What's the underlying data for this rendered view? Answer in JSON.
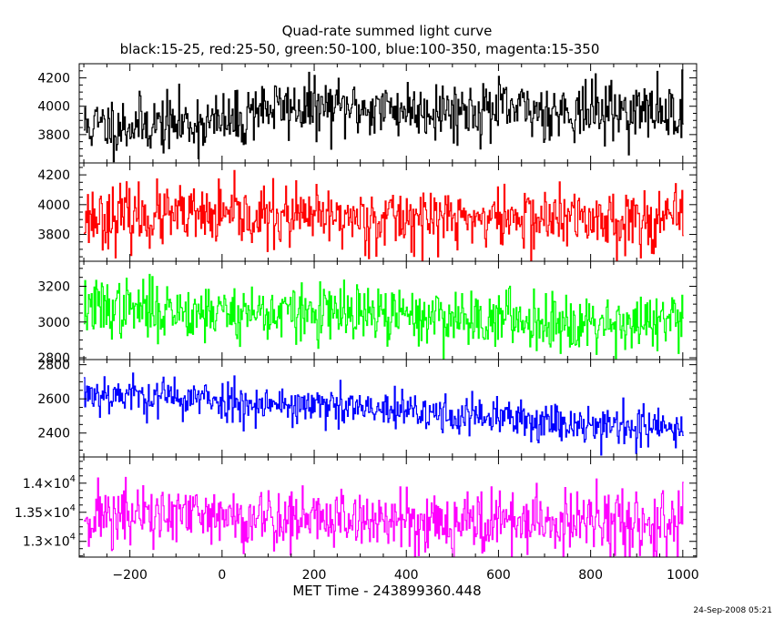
{
  "chart_data": {
    "type": "line",
    "title": "Quad-rate summed light curve",
    "subtitle": "black:15-25, red:25-50, green:50-100, blue:100-350, magenta:15-350",
    "xlabel": "MET Time - 243899360.448",
    "xlim": [
      -310,
      1030
    ],
    "x_ticks": [
      -200,
      0,
      200,
      400,
      600,
      800,
      1000
    ],
    "x_tick_labels": [
      "−200",
      "0",
      "200",
      "400",
      "600",
      "800",
      "1000"
    ],
    "x_start": -300,
    "x_step": 2,
    "grid": false,
    "series": [
      {
        "color": "#000000",
        "ylim": [
          3600,
          4300
        ],
        "y_ticks": [
          3800,
          4000,
          4200
        ],
        "y_tick_labels": [
          "3800",
          "4000",
          "4200"
        ],
        "profile": [
          [
            -300,
            3860
          ],
          [
            50,
            3890
          ],
          [
            60,
            3990
          ],
          [
            1000,
            3960
          ]
        ],
        "noise": 120,
        "seed": 11
      },
      {
        "color": "#ff0000",
        "ylim": [
          3620,
          4280
        ],
        "y_ticks": [
          3800,
          4000,
          4200
        ],
        "y_tick_labels": [
          "3800",
          "4000",
          "4200"
        ],
        "profile": [
          [
            -300,
            3920
          ],
          [
            1000,
            3900
          ]
        ],
        "noise": 120,
        "seed": 23
      },
      {
        "color": "#00ff00",
        "ylim": [
          2790,
          3340
        ],
        "y_ticks": [
          2800,
          3000,
          3200
        ],
        "y_tick_labels": [
          "2800",
          "3000",
          "3200"
        ],
        "profile": [
          [
            -300,
            3080
          ],
          [
            1000,
            2990
          ]
        ],
        "noise": 95,
        "seed": 37
      },
      {
        "color": "#0000ff",
        "ylim": [
          2260,
          2830
        ],
        "y_ticks": [
          2400,
          2600,
          2800
        ],
        "y_tick_labels": [
          "2400",
          "2600",
          "2800"
        ],
        "profile": [
          [
            -300,
            2640
          ],
          [
            1000,
            2420
          ]
        ],
        "noise": 70,
        "seed": 53
      },
      {
        "color": "#ff00ff",
        "ylim": [
          12730,
          14450
        ],
        "y_ticks": [
          13000,
          13500,
          14000
        ],
        "y_tick_labels": [
          {
            "m": "1.3",
            "e": "4"
          },
          {
            "m": "1.35",
            "e": "4"
          },
          {
            "m": "1.4",
            "e": "4"
          }
        ],
        "profile": [
          [
            -300,
            13450
          ],
          [
            1000,
            13280
          ]
        ],
        "noise": 330,
        "seed": 71
      }
    ]
  },
  "footer": {
    "timestamp": "24-Sep-2008 05:21"
  }
}
